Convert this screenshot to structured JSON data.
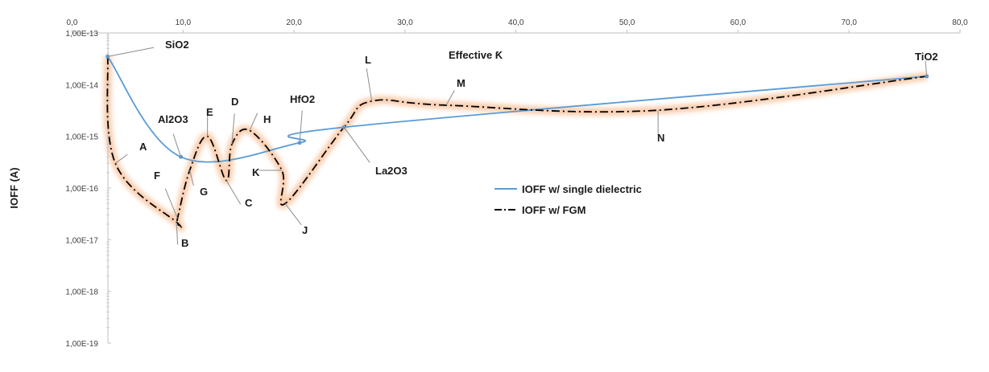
{
  "chart_data": {
    "type": "line",
    "xlabel": "Effective Ƙ",
    "ylabel": "IOFF (A)",
    "xlim": [
      0,
      80
    ],
    "ylim": [
      1e-19,
      1e-13
    ],
    "yscale": "log",
    "grid": false,
    "legend_position": "center-right",
    "x_tick_labels": [
      "0,0",
      "10,0",
      "20,0",
      "30,0",
      "40,0",
      "50,0",
      "60,0",
      "70,0",
      "80,0"
    ],
    "y_tick_labels": [
      "1,00E-13",
      "1,00E-14",
      "1,00E-15",
      "1,00E-16",
      "1,00E-17",
      "1,00E-18",
      "1,00E-19"
    ],
    "series": [
      {
        "name": "IOFF w/ single dielectric",
        "color": "#5b9bd5",
        "style": "solid",
        "points": [
          {
            "x": 3.2,
            "y": 3.5e-14,
            "label": "SiO2"
          },
          {
            "x": 9.8,
            "y": 4e-16,
            "label": "Al2O3"
          },
          {
            "x": 20.5,
            "y": 7.5e-16,
            "label": "HfO2"
          },
          {
            "x": 24.5,
            "y": 1.5e-15,
            "label": "La2O3"
          },
          {
            "x": 77.0,
            "y": 1.45e-14,
            "label": "TiO2"
          }
        ]
      },
      {
        "name": "IOFF w/ FGM",
        "color": "#000000",
        "style": "dash-dot",
        "points": [
          {
            "x": 3.2,
            "y": 3.5e-14,
            "label": ""
          },
          {
            "x": 3.9,
            "y": 3e-16,
            "label": "A"
          },
          {
            "x": 9.4,
            "y": 2.2e-17,
            "label": "B"
          },
          {
            "x": 9.5,
            "y": 2.6e-17,
            "label": "F"
          },
          {
            "x": 10.6,
            "y": 2.2e-16,
            "label": "G"
          },
          {
            "x": 12.2,
            "y": 1e-15,
            "label": "E"
          },
          {
            "x": 13.9,
            "y": 1.4e-16,
            "label": "C"
          },
          {
            "x": 14.4,
            "y": 7e-16,
            "label": "D"
          },
          {
            "x": 16.0,
            "y": 1.3e-15,
            "label": "H"
          },
          {
            "x": 18.9,
            "y": 2.2e-16,
            "label": "K"
          },
          {
            "x": 19.2,
            "y": 5e-17,
            "label": "J"
          },
          {
            "x": 24.5,
            "y": 1.5e-15,
            "label": ""
          },
          {
            "x": 27.0,
            "y": 4.8e-15,
            "label": "L"
          },
          {
            "x": 33.7,
            "y": 4e-15,
            "label": "M"
          },
          {
            "x": 52.8,
            "y": 3.2e-15,
            "label": "N"
          },
          {
            "x": 77.0,
            "y": 1.45e-14,
            "label": ""
          }
        ]
      }
    ]
  }
}
